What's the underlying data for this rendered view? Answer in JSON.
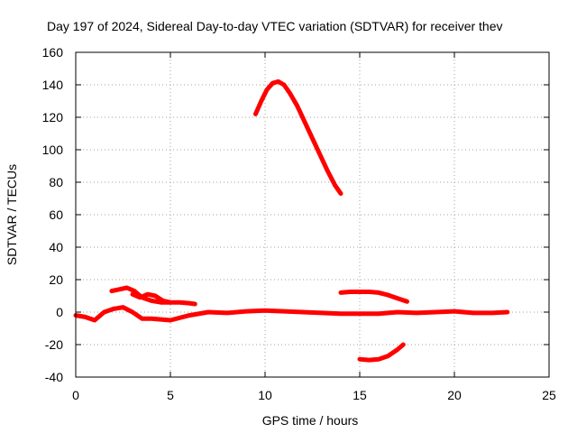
{
  "chart_data": {
    "type": "line",
    "title": "Day 197 of 2024, Sidereal Day-to-day VTEC variation (SDTVAR) for receiver thev",
    "xlabel": "GPS time / hours",
    "ylabel": "SDTVAR / TECUs",
    "xlim": [
      0,
      25
    ],
    "ylim": [
      -40,
      160
    ],
    "xticks": [
      0,
      5,
      10,
      15,
      20,
      25
    ],
    "yticks": [
      -40,
      -20,
      0,
      20,
      40,
      60,
      80,
      100,
      120,
      140,
      160
    ],
    "grid": true,
    "series_color": "#ff0000",
    "series": [
      {
        "name": "baseline",
        "x": [
          0,
          0.5,
          1.0,
          1.5,
          2.0,
          2.5,
          3.0,
          3.5,
          4.0,
          5.0,
          6.0,
          7.0,
          8.0,
          9.0,
          10.0,
          11.0,
          12.0,
          13.0,
          14.0,
          15.0,
          16.0,
          17.0,
          18.0,
          19.0,
          20.0,
          21.0,
          22.0,
          22.8
        ],
        "y": [
          -2,
          -3,
          -5,
          0,
          2,
          3,
          0,
          -4,
          -4,
          -5,
          -2,
          0,
          -0.5,
          0.5,
          1,
          0.5,
          0,
          -0.5,
          -1,
          -1,
          -1,
          0,
          -0.5,
          0,
          0.5,
          -0.5,
          -0.5,
          0
        ]
      },
      {
        "name": "morning-upper",
        "x": [
          1.9,
          2.3,
          2.7,
          3.1,
          3.5,
          4.0,
          4.5,
          5.0,
          5.5,
          6.0,
          6.3
        ],
        "y": [
          13,
          14,
          15,
          13,
          9,
          7,
          6,
          6,
          6,
          5.5,
          5
        ]
      },
      {
        "name": "morning-mid",
        "x": [
          3.0,
          3.4,
          3.8,
          4.2,
          4.6,
          5.0
        ],
        "y": [
          11,
          9,
          11,
          10,
          7,
          6
        ]
      },
      {
        "name": "noon-arc",
        "x": [
          9.5,
          9.8,
          10.1,
          10.4,
          10.7,
          11.0,
          11.3,
          11.7,
          12.1,
          12.5,
          12.9,
          13.3,
          13.7,
          14.0
        ],
        "y": [
          122,
          130,
          137,
          141,
          142,
          140,
          135,
          127,
          117,
          107,
          97,
          87,
          78,
          73
        ]
      },
      {
        "name": "evening-upper",
        "x": [
          14.0,
          14.5,
          15.0,
          15.5,
          16.0,
          16.5,
          17.0,
          17.5
        ],
        "y": [
          12,
          12.5,
          12.5,
          12.5,
          12,
          10.5,
          8.5,
          6.5
        ]
      },
      {
        "name": "evening-lower",
        "x": [
          15.0,
          15.5,
          16.0,
          16.5,
          17.0,
          17.3
        ],
        "y": [
          -29,
          -29.5,
          -29,
          -27,
          -23,
          -20
        ]
      }
    ]
  }
}
